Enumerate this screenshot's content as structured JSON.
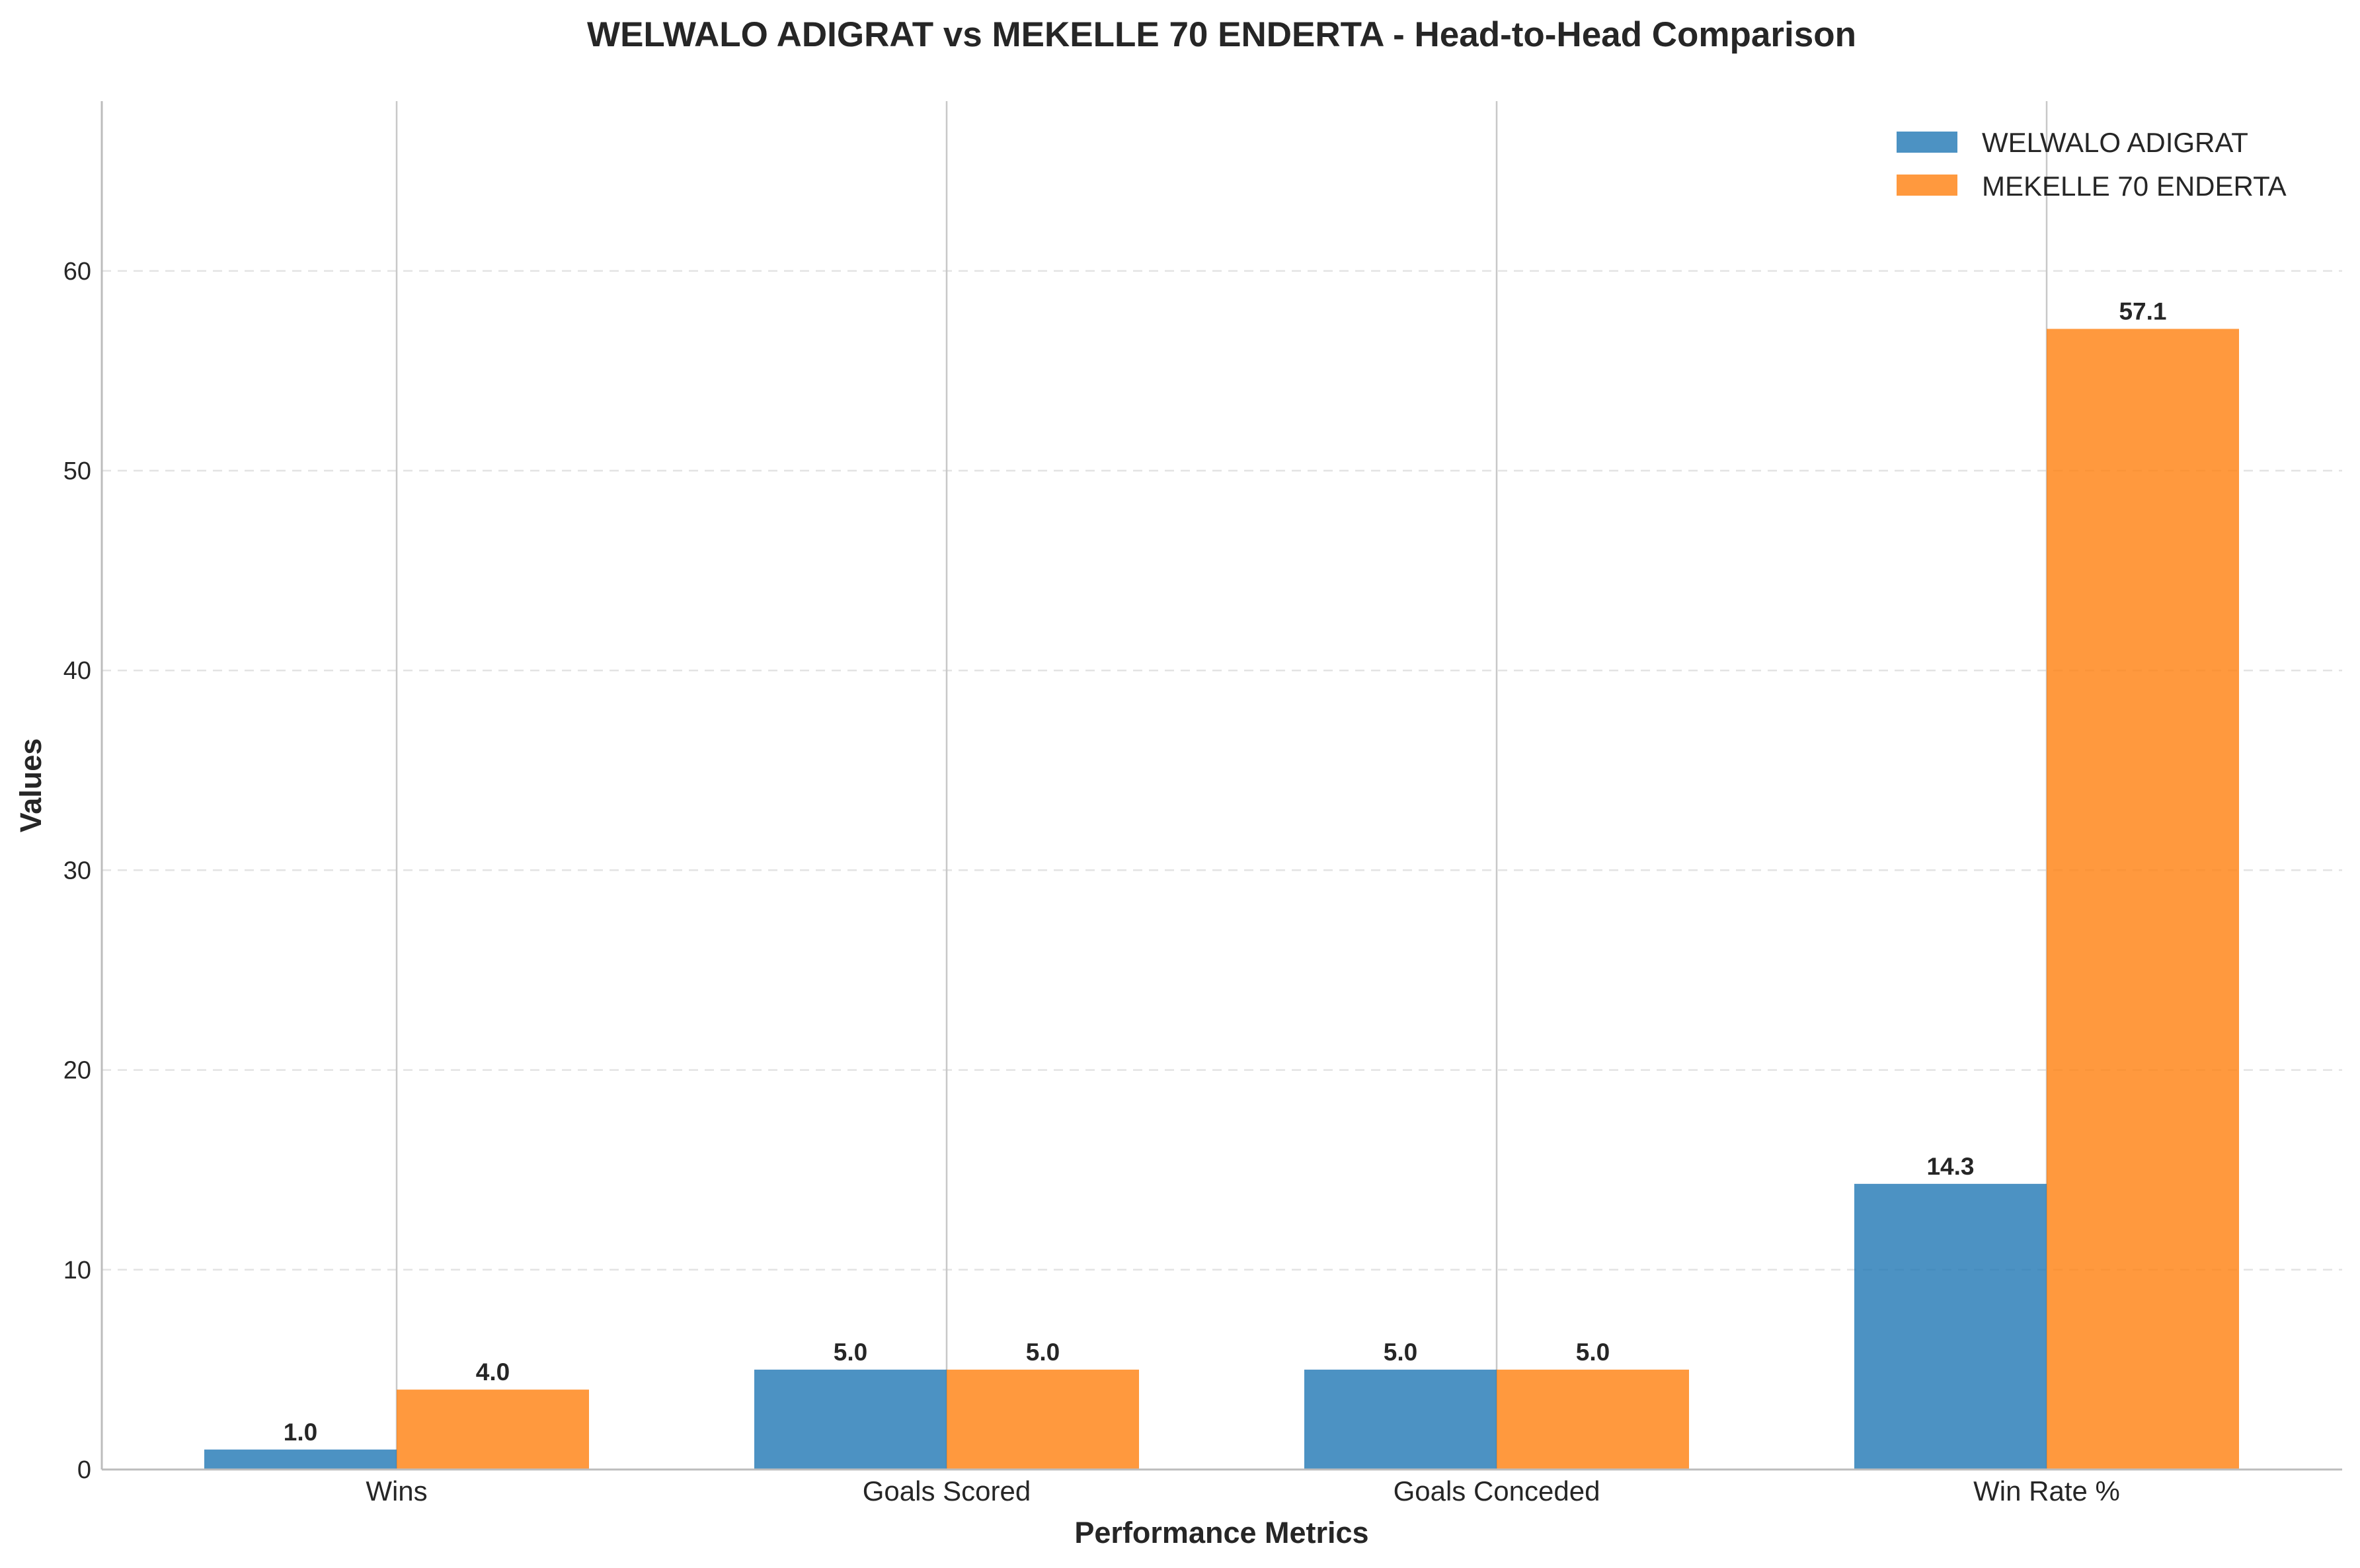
{
  "chart_data": {
    "type": "bar",
    "title": "WELWALO ADIGRAT vs MEKELLE 70 ENDERTA - Head-to-Head Comparison",
    "xlabel": "Performance Metrics",
    "ylabel": "Values",
    "categories": [
      "Wins",
      "Goals Scored",
      "Goals Conceded",
      "Win Rate %"
    ],
    "series": [
      {
        "name": "WELWALO ADIGRAT",
        "values": [
          1.0,
          5.0,
          5.0,
          14.3
        ],
        "color": "#1f77b4"
      },
      {
        "name": "MEKELLE 70 ENDERTA",
        "values": [
          4.0,
          5.0,
          5.0,
          57.1
        ],
        "color": "#ff7f0e"
      }
    ],
    "ylim": [
      0,
      68.5
    ],
    "yticks": [
      0,
      10,
      20,
      30,
      40,
      50,
      60
    ],
    "grid": {
      "y": true,
      "x": true,
      "y_style": "dashed"
    },
    "legend": "top-right",
    "data_label_format": "one-decimal"
  }
}
